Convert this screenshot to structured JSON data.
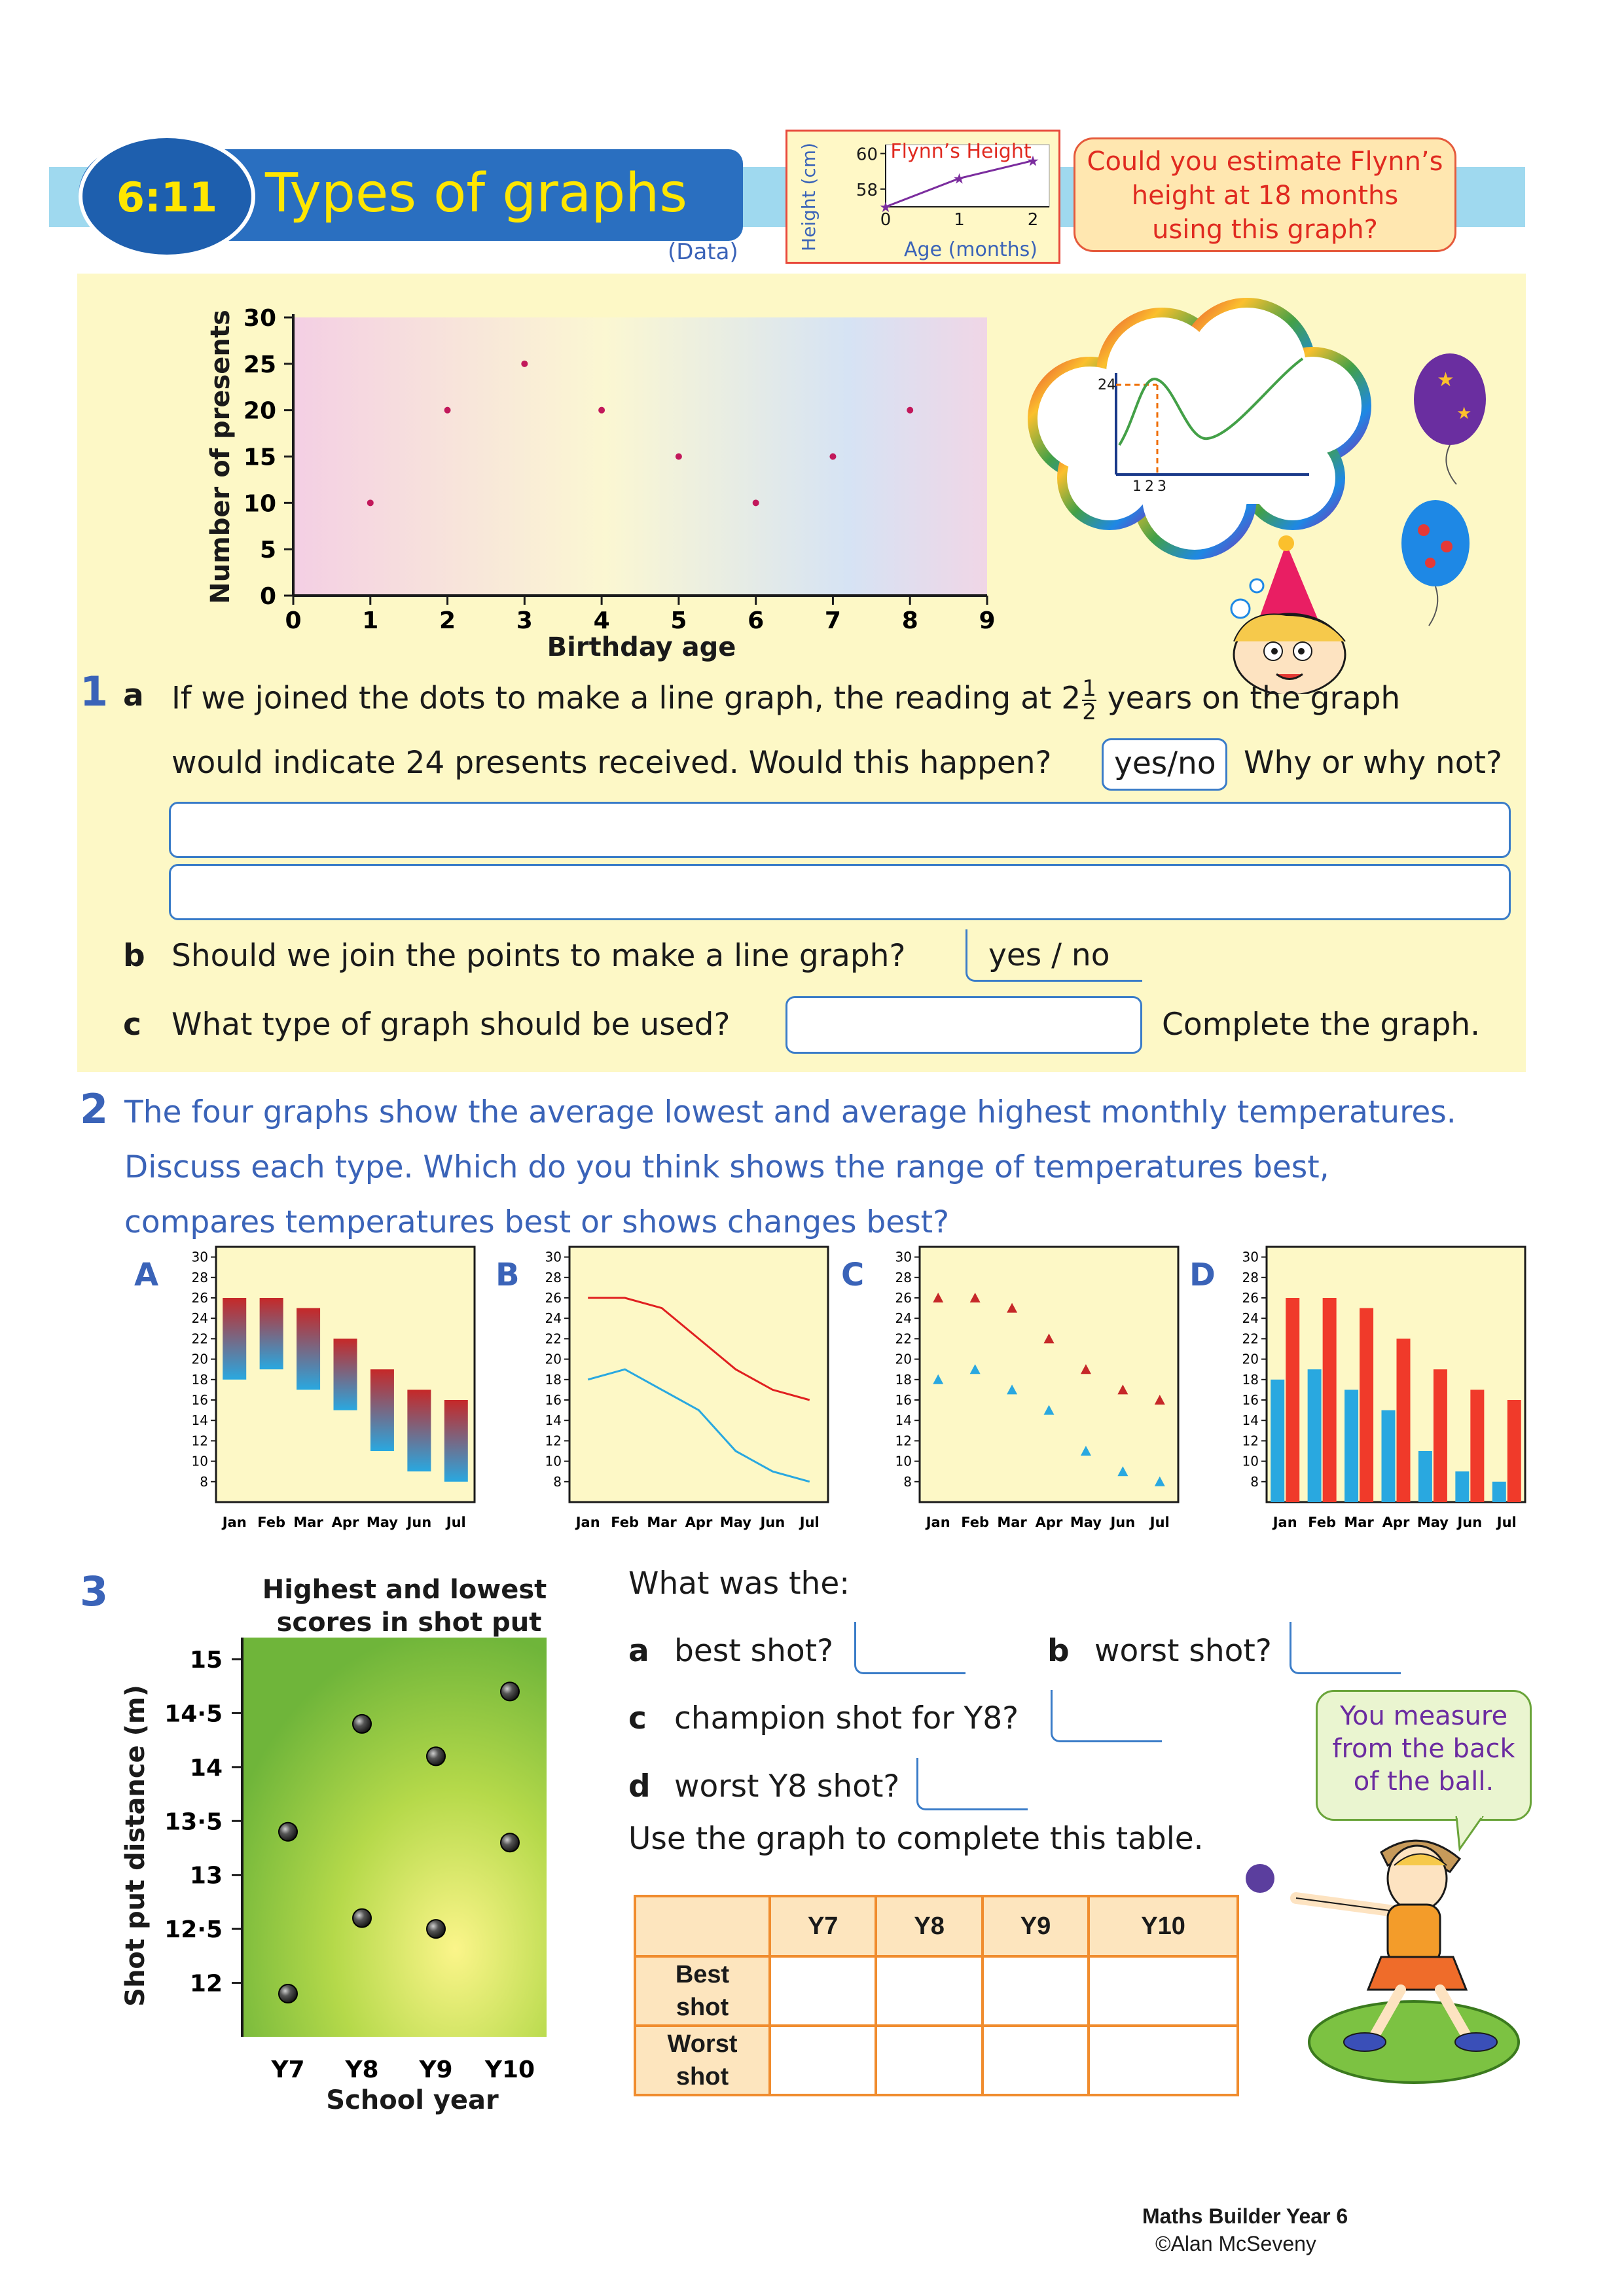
{
  "header": {
    "code": "6:11",
    "title": "Types of graphs",
    "strand": "(Data)"
  },
  "mini_graph": {
    "title": "Flynn’s Height",
    "ylabel": "Height (cm)",
    "xlabel": "Age (months)",
    "yticks": [
      "60",
      "58"
    ],
    "xticks": [
      "0",
      "1",
      "2"
    ]
  },
  "bubble_text": [
    "Could you estimate Flynn’s",
    "height at 18 months",
    "using this graph?"
  ],
  "q1_graph": {
    "ylabel": "Number of presents",
    "xlabel": "Birthday age"
  },
  "thought_graph": {
    "y_label": "24",
    "x_labels": [
      "1",
      "2",
      "3"
    ]
  },
  "q1": {
    "number": "1",
    "a_letter": "a",
    "a_line1_pre": "If we joined the dots to make a line graph, the reading at 2",
    "a_frac_num": "1",
    "a_frac_den": "2",
    "a_line1_post": " years on the graph",
    "a_line2": "would indicate 24 presents received. Would this happen?",
    "a_yesno": "yes/no",
    "a_why": "Why or why not?",
    "b_letter": "b",
    "b_text": "Should we join the points to make a line graph?",
    "b_yesno": "yes / no",
    "c_letter": "c",
    "c_text": "What type of graph should be used?",
    "c_after": "Complete the graph."
  },
  "q2": {
    "number": "2",
    "lines": [
      "The four graphs show the average lowest and average highest monthly temperatures.",
      "Discuss each type. Which do you think shows the range of temperatures best,",
      "compares temperatures best or shows changes best?"
    ],
    "graph_labels": [
      "A",
      "B",
      "C",
      "D"
    ]
  },
  "q3": {
    "number": "3",
    "intro": "What was the:",
    "a_letter": "a",
    "a_text": "best shot?",
    "b_letter": "b",
    "b_text": "worst shot?",
    "c_letter": "c",
    "c_text": "champion shot for Y8?",
    "d_letter": "d",
    "d_text": "worst Y8 shot?",
    "table_intro": "Use the graph to complete this table.",
    "table_headers": [
      "",
      "Y7",
      "Y8",
      "Y9",
      "Y10"
    ],
    "row1_label": [
      "Best",
      "shot"
    ],
    "row2_label": [
      "Worst",
      "shot"
    ],
    "speech": [
      "You measure",
      "from the back",
      "of the ball."
    ]
  },
  "footer": {
    "book": "Maths Builder Year 6",
    "author": "©Alan McSeveny"
  },
  "chart_data": [
    {
      "type": "scatter",
      "xlabel": "Birthday age",
      "ylabel": "Number of presents",
      "xlim": [
        0,
        9
      ],
      "ylim": [
        0,
        30
      ],
      "xticks": [
        0,
        1,
        2,
        3,
        4,
        5,
        6,
        7,
        8,
        9
      ],
      "yticks": [
        0,
        5,
        10,
        15,
        20,
        25,
        30
      ],
      "x": [
        1,
        2,
        3,
        4,
        5,
        6,
        7,
        8
      ],
      "y": [
        10,
        20,
        25,
        20,
        15,
        10,
        15,
        20
      ],
      "point_color": "#c2185b"
    },
    {
      "type": "line",
      "title": "Flynn’s Height",
      "xlabel": "Age (months)",
      "ylabel": "Height (cm)",
      "x": [
        0,
        1,
        2
      ],
      "y": [
        57,
        58.6,
        59.6
      ],
      "color": "#7b2d9e"
    },
    {
      "type": "bar",
      "label": "A",
      "style": "floating range",
      "categories": [
        "Jan",
        "Feb",
        "Mar",
        "Apr",
        "May",
        "Jun",
        "Jul"
      ],
      "ylim": [
        6,
        31
      ],
      "yticks": [
        8,
        10,
        12,
        14,
        16,
        18,
        20,
        22,
        24,
        26,
        28,
        30
      ],
      "series": [
        {
          "values": [
            18,
            19,
            17,
            15,
            11,
            9,
            8
          ],
          "color": "#29a8e0"
        },
        {
          "values": [
            26,
            26,
            25,
            22,
            19,
            17,
            16
          ],
          "color": "#c62828"
        }
      ]
    },
    {
      "type": "line",
      "label": "B",
      "categories": [
        "Jan",
        "Feb",
        "Mar",
        "Apr",
        "May",
        "Jun",
        "Jul"
      ],
      "ylim": [
        6,
        31
      ],
      "yticks": [
        8,
        10,
        12,
        14,
        16,
        18,
        20,
        22,
        24,
        26,
        28,
        30
      ],
      "series": [
        {
          "values": [
            26,
            26,
            25,
            22,
            19,
            17,
            16
          ],
          "color": "#e02020"
        },
        {
          "values": [
            18,
            19,
            17,
            15,
            11,
            9,
            8
          ],
          "color": "#29a8e0"
        }
      ]
    },
    {
      "type": "scatter",
      "label": "C",
      "categories": [
        "Jan",
        "Feb",
        "Mar",
        "Apr",
        "May",
        "Jun",
        "Jul"
      ],
      "ylim": [
        6,
        31
      ],
      "yticks": [
        8,
        10,
        12,
        14,
        16,
        18,
        20,
        22,
        24,
        26,
        28,
        30
      ],
      "series": [
        {
          "values": [
            26,
            26,
            25,
            22,
            19,
            17,
            16
          ],
          "color": "#c62828"
        },
        {
          "values": [
            18,
            19,
            17,
            15,
            11,
            9,
            8
          ],
          "color": "#29a8e0"
        }
      ]
    },
    {
      "type": "bar",
      "label": "D",
      "categories": [
        "Jan",
        "Feb",
        "Mar",
        "Apr",
        "May",
        "Jun",
        "Jul"
      ],
      "ylim": [
        6,
        31
      ],
      "yticks": [
        8,
        10,
        12,
        14,
        16,
        18,
        20,
        22,
        24,
        26,
        28,
        30
      ],
      "series": [
        {
          "values": [
            18,
            19,
            17,
            15,
            11,
            9,
            8
          ],
          "color": "#29a8e0"
        },
        {
          "values": [
            26,
            26,
            25,
            22,
            19,
            17,
            16
          ],
          "color": "#f03a2a"
        }
      ]
    },
    {
      "type": "scatter",
      "title": "Highest and lowest scores in shot put",
      "xlabel": "School year",
      "ylabel": "Shot put distance (m)",
      "categories": [
        "Y7",
        "Y8",
        "Y9",
        "Y10"
      ],
      "yticks": [
        "12",
        "12·5",
        "13",
        "13·5",
        "14",
        "14·5",
        "15"
      ],
      "ylim": [
        11.5,
        15.2
      ],
      "series": [
        {
          "values": [
            13.4,
            14.4,
            14.1,
            14.7
          ]
        },
        {
          "values": [
            11.9,
            12.6,
            12.5,
            13.3
          ]
        }
      ]
    }
  ]
}
